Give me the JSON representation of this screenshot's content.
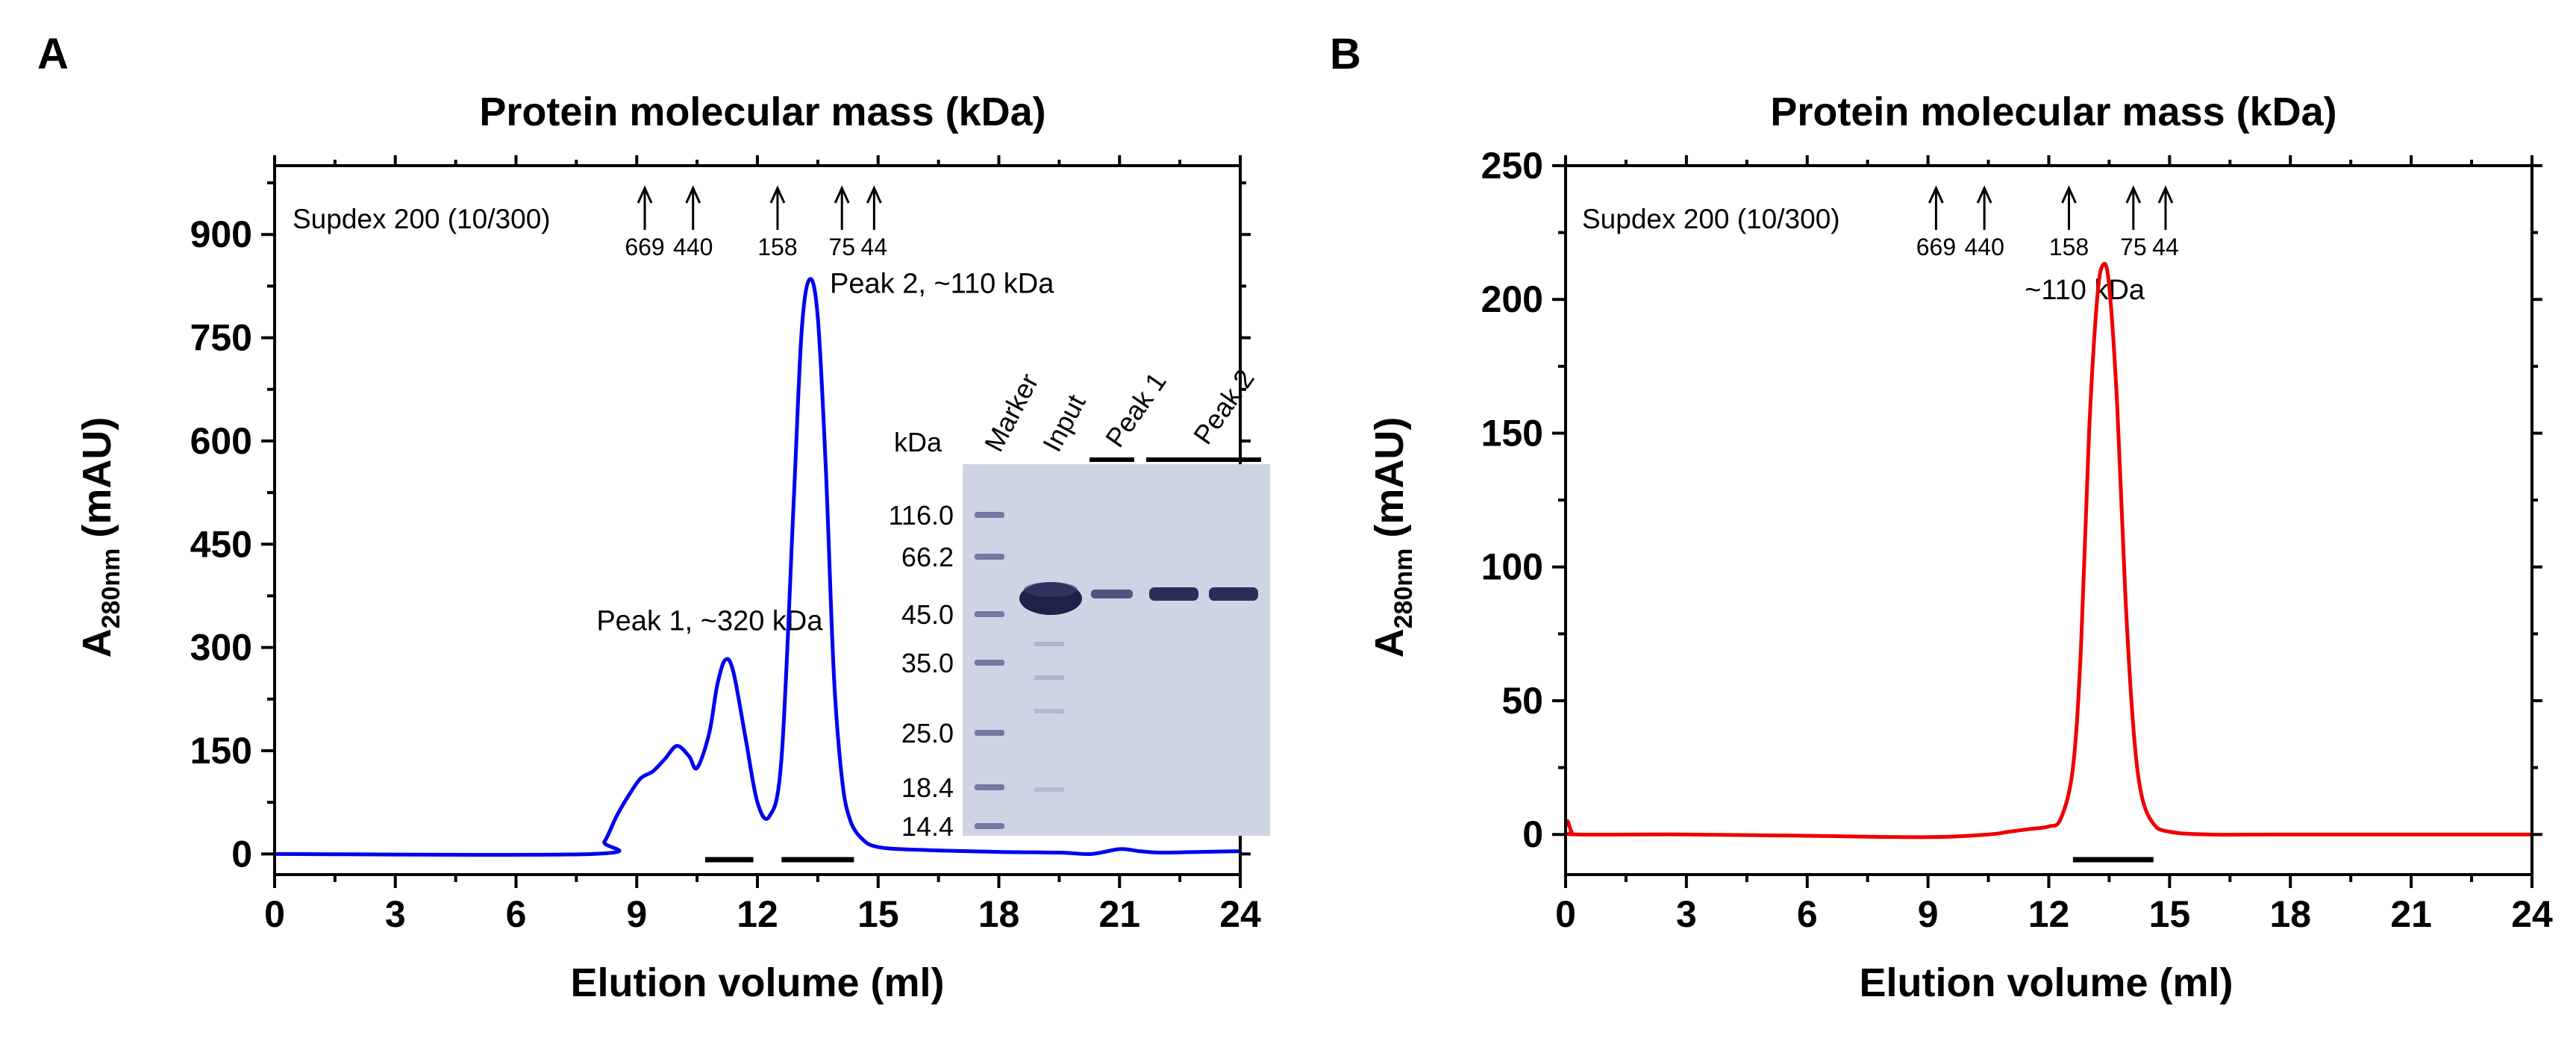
{
  "panel_labels": [
    "A",
    "B"
  ],
  "colors": {
    "curve_a": "#0000ee",
    "curve_b": "#ee0000",
    "axis": "#000000",
    "gel_bg": "#cfd4e4",
    "band": "#2a2f5a"
  },
  "chart_data": [
    {
      "type": "line",
      "panel": "A",
      "title": "Protein molecular mass (kDa)",
      "xlabel": "Elution volume (ml)",
      "ylabel_main": "A",
      "ylabel_sub": "280nm",
      "ylabel_unit": "(mAU)",
      "xlim": [
        0,
        24
      ],
      "ylim": [
        -30,
        1000
      ],
      "xticks": [
        0,
        3,
        6,
        9,
        12,
        15,
        18,
        21,
        24
      ],
      "yticks": [
        0,
        150,
        300,
        450,
        600,
        750,
        900
      ],
      "column_label": "Supdex 200 (10/300)",
      "markers": [
        {
          "label": "669",
          "x": 9.2
        },
        {
          "label": "440",
          "x": 10.4
        },
        {
          "label": "158",
          "x": 12.5
        },
        {
          "label": "75",
          "x": 14.1
        },
        {
          "label": "44",
          "x": 14.9
        }
      ],
      "annotations": [
        {
          "text": "Peak 1, ~320 kDa",
          "x": 8.0,
          "y": 325
        },
        {
          "text": "Peak 2, ~110 kDa",
          "x": 13.8,
          "y": 815
        }
      ],
      "fraction_bars": [
        [
          10.7,
          11.9
        ],
        [
          12.6,
          14.4
        ]
      ],
      "series": [
        {
          "name": "A280",
          "color": "#0000ee",
          "x": [
            0,
            7.9,
            8.2,
            8.5,
            8.8,
            9.1,
            9.4,
            9.7,
            10.0,
            10.3,
            10.5,
            10.8,
            11.0,
            11.2,
            11.4,
            11.7,
            12.0,
            12.3,
            12.6,
            12.9,
            13.1,
            13.3,
            13.5,
            13.7,
            13.9,
            14.1,
            14.3,
            14.6,
            15.0,
            16.0,
            18.0,
            19.5,
            20.3,
            21.0,
            21.5,
            22.0,
            23.0,
            24.0
          ],
          "y": [
            0,
            0,
            18,
            55,
            85,
            110,
            120,
            138,
            157,
            142,
            125,
            175,
            245,
            282,
            265,
            170,
            75,
            55,
            140,
            510,
            760,
            835,
            780,
            560,
            260,
            110,
            50,
            22,
            10,
            6,
            3,
            2,
            0,
            7,
            4,
            2,
            3,
            4
          ]
        }
      ],
      "inset": {
        "kda_label": "kDa",
        "lane_labels": [
          "Marker",
          "Input",
          "Peak 1",
          "Peak 2"
        ],
        "ladder": [
          "116.0",
          "66.2",
          "45.0",
          "35.0",
          "25.0",
          "18.4",
          "14.4"
        ]
      }
    },
    {
      "type": "line",
      "panel": "B",
      "title": "Protein molecular mass (kDa)",
      "xlabel": "Elution volume (ml)",
      "ylabel_main": "A",
      "ylabel_sub": "280nm",
      "ylabel_unit": "(mAU)",
      "xlim": [
        0,
        24
      ],
      "ylim": [
        -15,
        250
      ],
      "xticks": [
        0,
        3,
        6,
        9,
        12,
        15,
        18,
        21,
        24
      ],
      "yticks": [
        0,
        50,
        100,
        150,
        200,
        250
      ],
      "column_label": "Supdex 200 (10/300)",
      "markers": [
        {
          "label": "669",
          "x": 9.2
        },
        {
          "label": "440",
          "x": 10.4
        },
        {
          "label": "158",
          "x": 12.5
        },
        {
          "label": "75",
          "x": 14.1
        },
        {
          "label": "44",
          "x": 14.9
        }
      ],
      "annotations": [
        {
          "text": "~110 kDa",
          "x": 11.4,
          "y": 200
        }
      ],
      "fraction_bars": [
        [
          12.6,
          14.6
        ]
      ],
      "series": [
        {
          "name": "A280",
          "color": "#ee0000",
          "x": [
            0,
            0.05,
            0.15,
            0.3,
            3,
            6,
            9,
            10.5,
            11.0,
            11.5,
            12.0,
            12.3,
            12.6,
            12.8,
            13.0,
            13.2,
            13.35,
            13.5,
            13.7,
            13.9,
            14.1,
            14.3,
            14.6,
            15.0,
            16.0,
            18.0,
            24.0
          ],
          "y": [
            3,
            5,
            1,
            0,
            0,
            -0.5,
            -1,
            0,
            1,
            2,
            3,
            6,
            25,
            70,
            150,
            200,
            213,
            205,
            160,
            90,
            40,
            15,
            4,
            1,
            0,
            0,
            0
          ]
        }
      ]
    }
  ]
}
